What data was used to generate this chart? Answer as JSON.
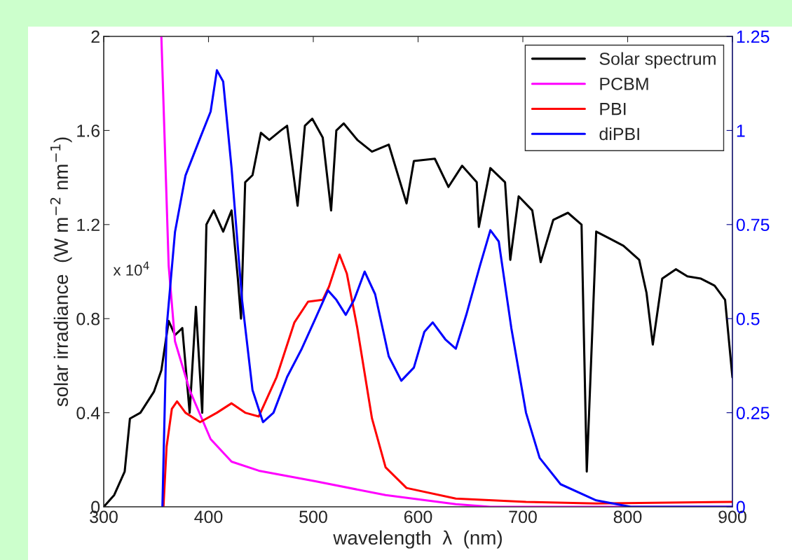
{
  "chart_data": {
    "type": "line",
    "xlabel": "wavelength  λ  (nm)",
    "ylabel": "solar irradiance  (W m$^{−2}$ nm$^{−1}$)",
    "annotations": [
      "x 10$^{4}$"
    ],
    "xlim": [
      300,
      900
    ],
    "xticks": [
      300,
      400,
      500,
      600,
      700,
      800,
      900
    ],
    "ylim": [
      0,
      2
    ],
    "yticks": [
      0,
      0.4,
      0.8,
      1.2,
      1.6,
      2
    ],
    "y2lim": [
      0,
      1.25
    ],
    "y2ticks": [
      0,
      0.25,
      0.5,
      0.75,
      1,
      1.25
    ],
    "legend": "top right",
    "grid": false,
    "series": [
      {
        "name": "Solar spectrum",
        "color": "#000000",
        "x": [
          300,
          310,
          320,
          325,
          335,
          348,
          355,
          362,
          368,
          375,
          382,
          388,
          394,
          398,
          405,
          414,
          422,
          428,
          431,
          435,
          442,
          450,
          458,
          469,
          475,
          485,
          492,
          499,
          509,
          517,
          522,
          529,
          542,
          556,
          572,
          589,
          596,
          616,
          629,
          642,
          656,
          658,
          669,
          683,
          688,
          696,
          709,
          717,
          729,
          743,
          756,
          761,
          770,
          783,
          796,
          811,
          818,
          824,
          833,
          846,
          857,
          870,
          883,
          893,
          900
        ],
        "values": [
          0,
          0.05,
          0.15,
          0.375,
          0.4,
          0.49,
          0.58,
          0.79,
          0.73,
          0.76,
          0.4,
          0.85,
          0.4,
          1.2,
          1.26,
          1.17,
          1.26,
          0.97,
          0.8,
          1.38,
          1.41,
          1.59,
          1.56,
          1.6,
          1.62,
          1.28,
          1.62,
          1.65,
          1.57,
          1.26,
          1.6,
          1.63,
          1.56,
          1.51,
          1.54,
          1.29,
          1.47,
          1.48,
          1.36,
          1.45,
          1.38,
          1.19,
          1.44,
          1.38,
          1.05,
          1.32,
          1.26,
          1.04,
          1.22,
          1.25,
          1.2,
          0.15,
          1.17,
          1.14,
          1.11,
          1.05,
          0.91,
          0.69,
          0.97,
          1.01,
          0.98,
          0.97,
          0.94,
          0.88,
          0.55
        ]
      },
      {
        "name": "PCBM",
        "color": "#ff00ff",
        "axis": "y2",
        "x": [
          355,
          362,
          368,
          382,
          402,
          422,
          448,
          502,
          569,
          636,
          669,
          900
        ],
        "values": [
          1.25,
          0.64,
          0.44,
          0.31,
          0.18,
          0.12,
          0.096,
          0.068,
          0.031,
          0.007,
          0,
          0
        ]
      },
      {
        "name": "PBI",
        "color": "#ff0000",
        "axis": "y2",
        "x": [
          357,
          360,
          365,
          370,
          378,
          392,
          408,
          422,
          435,
          448,
          465,
          482,
          495,
          509,
          515,
          525,
          532,
          542,
          556,
          569,
          589,
          636,
          703,
          770,
          900
        ],
        "values": [
          0,
          0.16,
          0.26,
          0.28,
          0.25,
          0.225,
          0.25,
          0.275,
          0.25,
          0.24,
          0.345,
          0.49,
          0.545,
          0.55,
          0.585,
          0.67,
          0.62,
          0.475,
          0.235,
          0.105,
          0.05,
          0.022,
          0.013,
          0.009,
          0.013
        ]
      },
      {
        "name": "diPBI",
        "color": "#0000ff",
        "axis": "y2",
        "x": [
          356,
          360,
          368,
          378,
          392,
          402,
          408,
          414,
          422,
          432,
          442,
          452,
          462,
          475,
          489,
          502,
          514,
          522,
          531,
          539,
          549,
          559,
          572,
          584,
          596,
          606,
          614,
          626,
          636,
          646,
          659,
          669,
          677,
          689,
          703,
          716,
          736,
          770,
          803,
          900
        ],
        "values": [
          0,
          0.475,
          0.73,
          0.88,
          0.98,
          1.05,
          1.16,
          1.13,
          0.9,
          0.55,
          0.31,
          0.225,
          0.25,
          0.345,
          0.42,
          0.5,
          0.575,
          0.55,
          0.51,
          0.55,
          0.625,
          0.565,
          0.4,
          0.335,
          0.37,
          0.465,
          0.49,
          0.445,
          0.42,
          0.51,
          0.64,
          0.735,
          0.705,
          0.475,
          0.25,
          0.13,
          0.06,
          0.017,
          0,
          0
        ]
      }
    ]
  }
}
